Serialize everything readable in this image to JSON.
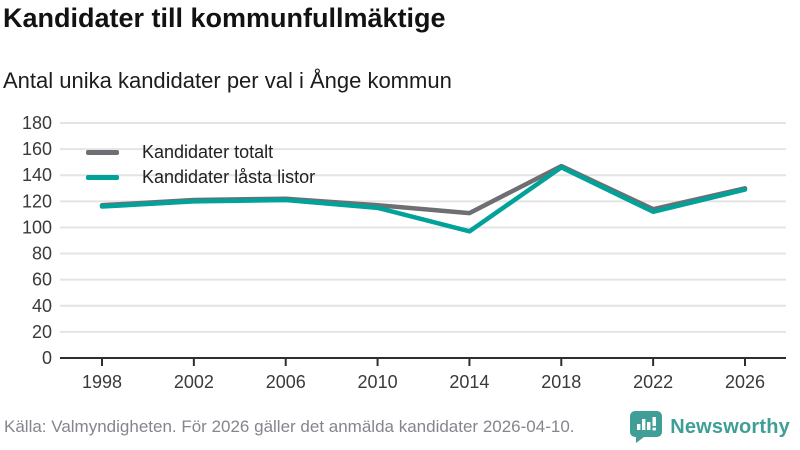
{
  "header": {
    "title": "Kandidater till kommunfullmäktige",
    "subtitle": "Antal unika kandidater per val i Ånge kommun"
  },
  "chart_data": {
    "type": "line",
    "title": "Kandidater till kommunfullmäktige",
    "subtitle": "Antal unika kandidater per val i Ånge kommun",
    "categories": [
      "1998",
      "2002",
      "2006",
      "2010",
      "2014",
      "2018",
      "2022",
      "2026"
    ],
    "series": [
      {
        "name": "Kandidater totalt",
        "color": "#6e6f72",
        "values": [
          117,
          121,
          122,
          117,
          111,
          147,
          114,
          130
        ]
      },
      {
        "name": "Kandidater låsta listor",
        "color": "#00a29a",
        "values": [
          116,
          120,
          121,
          115,
          97,
          146,
          112,
          129
        ]
      }
    ],
    "xlabel": "",
    "ylabel": "",
    "ylim": [
      0,
      180
    ],
    "ytick_step": 20,
    "grid": true,
    "legend_position": "top-left",
    "axis_color": "#2e2e2e",
    "grid_color": "#e4e4e4",
    "tick_label_color": "#3a3a3a"
  },
  "footer": {
    "source": "Källa: Valmyndigheten. För 2026 gäller det anmälda kandidater 2026-04-10.",
    "brand": "Newsworthy",
    "brand_color": "#3f9f97"
  }
}
